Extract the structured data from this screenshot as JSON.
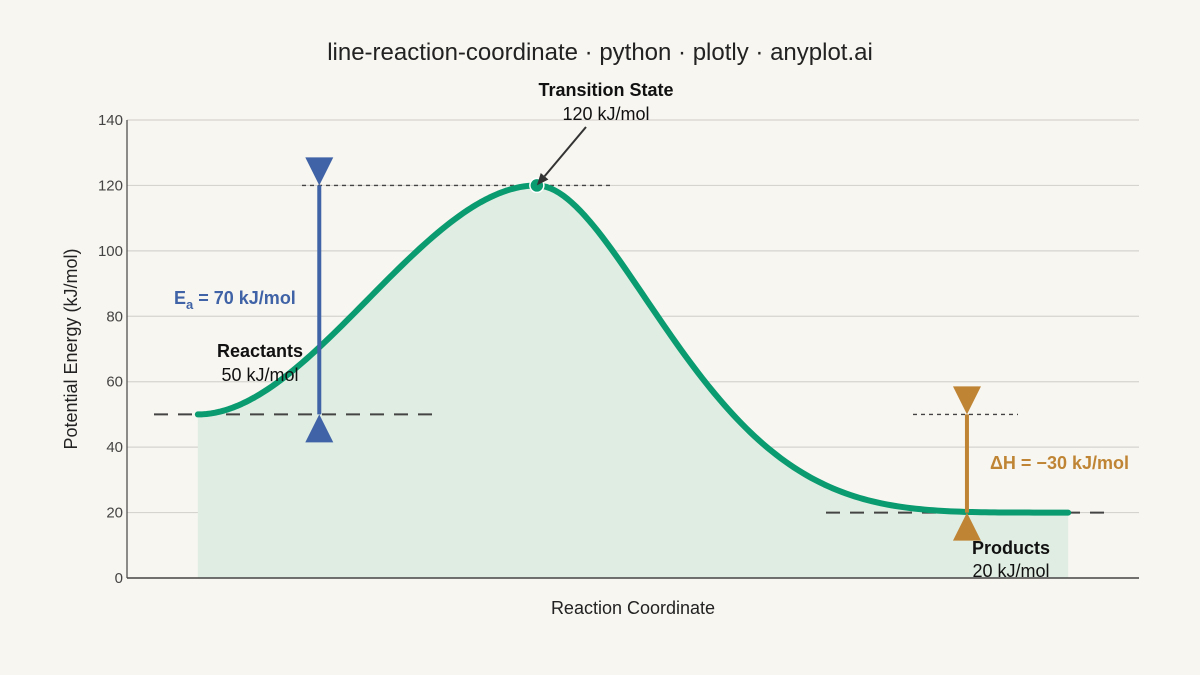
{
  "chart_data": {
    "type": "line",
    "title": "line-reaction-coordinate · python · plotly · anyplot.ai",
    "xlabel": "Reaction Coordinate",
    "ylabel": "Potential Energy (kJ/mol)",
    "ylim": [
      0,
      140
    ],
    "xlim": [
      0,
      10
    ],
    "y_ticks": [
      0,
      20,
      40,
      60,
      80,
      100,
      120,
      140
    ],
    "grid": true,
    "curve": {
      "reactant_level": 50,
      "transition_level": 120,
      "product_level": 20,
      "x_start": 0.7,
      "x_peak": 4.05,
      "x_end": 9.3
    },
    "annotations": {
      "transition_state": {
        "name": "Transition State",
        "energy": "120 kJ/mol",
        "x": 4.05,
        "y": 120
      },
      "reactants": {
        "name": "Reactants",
        "energy": "50 kJ/mol"
      },
      "products": {
        "name": "Products",
        "energy": "20 kJ/mol"
      },
      "activation_energy": {
        "symbol": "E",
        "subscript": "a",
        "value": " = 70 kJ/mol",
        "x": 1.9,
        "from": 50,
        "to": 120
      },
      "enthalpy_change": {
        "label": "ΔH = −30 kJ/mol",
        "x": 8.3,
        "from": 50,
        "to": 20
      }
    },
    "colors": {
      "curve": "#0a9b70",
      "fill": "#e0ede2",
      "activation": "#3f63a6",
      "enthalpy": "#bf8535",
      "dashed": "#444444",
      "grid": "#d6d4cf",
      "axis": "#444444"
    }
  }
}
